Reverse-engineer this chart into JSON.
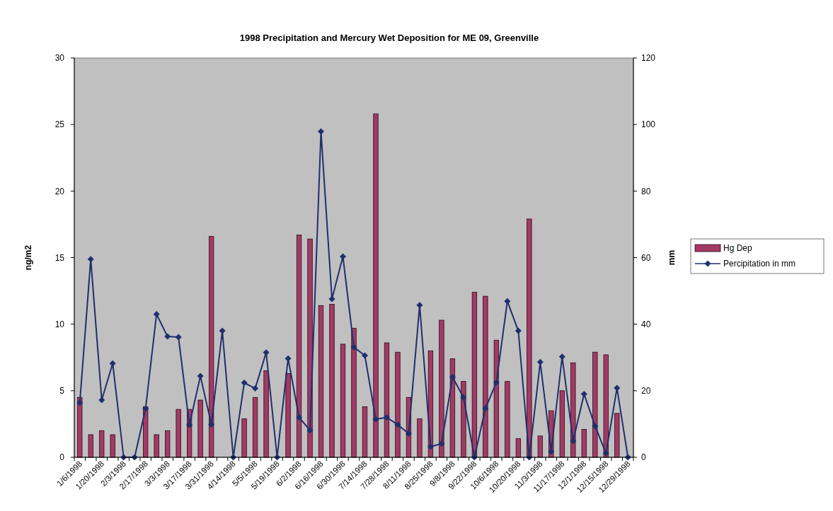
{
  "chart_data": {
    "type": "bar",
    "title": "1998 Precipitation and Mercury Wet Deposition for ME 09, Greenville",
    "ylabel": "ng/m2",
    "y2label": "mm",
    "categories": [
      "1/6/1998",
      null,
      "1/20/1998",
      null,
      "2/3/1998",
      null,
      "2/17/1998",
      null,
      "3/3/1998",
      null,
      "3/17/1998",
      null,
      "3/31/1998",
      null,
      "4/14/1998",
      null,
      "5/5/1998",
      null,
      "5/19/1998",
      null,
      "6/2/1998",
      null,
      "6/16/1998",
      null,
      "6/30/1998",
      null,
      "7/14/1998",
      null,
      "7/28/1998",
      null,
      "8/11/1998",
      null,
      "8/25/1998",
      null,
      "9/8/1998",
      null,
      "9/22/1998",
      null,
      "10/6/1998",
      null,
      "10/20/1998",
      null,
      "11/3/1998",
      null,
      "11/17/1998",
      null,
      "12/1/1998",
      null,
      "12/15/1998",
      null,
      "12/29/1998"
    ],
    "series": [
      {
        "name": "Hg Dep",
        "color": "#a33a64",
        "values": [
          4.5,
          1.7,
          2.0,
          1.7,
          0,
          0,
          3.8,
          1.7,
          2.0,
          3.6,
          3.6,
          4.3,
          16.6,
          0,
          0,
          2.9,
          4.5,
          6.5,
          0,
          6.3,
          16.7,
          16.4,
          11.4,
          11.5,
          8.5,
          9.7,
          3.8,
          25.8,
          8.6,
          7.9,
          4.5,
          2.9,
          8.0,
          10.3,
          7.4,
          5.7,
          12.4,
          12.1,
          8.8,
          5.7,
          1.4,
          17.9,
          1.6,
          3.5,
          5.0,
          7.1,
          2.1,
          7.9,
          7.7,
          3.3,
          0
        ]
      },
      {
        "name": "Percipitation in mm",
        "type": "line",
        "axis": "y2",
        "color": "#1f2f6e",
        "marker": "diamond",
        "values": [
          16.4,
          59.5,
          17.2,
          28.2,
          0,
          0,
          14.6,
          43.0,
          36.3,
          36.1,
          9.7,
          24.4,
          9.9,
          38.0,
          0,
          22.4,
          20.7,
          31.5,
          0,
          29.7,
          12.0,
          8.1,
          97.9,
          47.6,
          60.3,
          33.1,
          30.6,
          11.4,
          12.0,
          9.8,
          7.1,
          45.7,
          3.2,
          4.1,
          24.1,
          18.0,
          0,
          14.7,
          22.5,
          46.9,
          38.0,
          0,
          28.6,
          1.7,
          30.2,
          4.9,
          19.0,
          9.4,
          1.2,
          20.8,
          0
        ]
      }
    ],
    "ylim": [
      0,
      30
    ],
    "yticks": [
      0,
      5,
      10,
      15,
      20,
      25,
      30
    ],
    "y2lim": [
      0,
      120
    ],
    "y2ticks": [
      0,
      20,
      40,
      60,
      80,
      100,
      120
    ],
    "legend": "right",
    "grid": false
  }
}
